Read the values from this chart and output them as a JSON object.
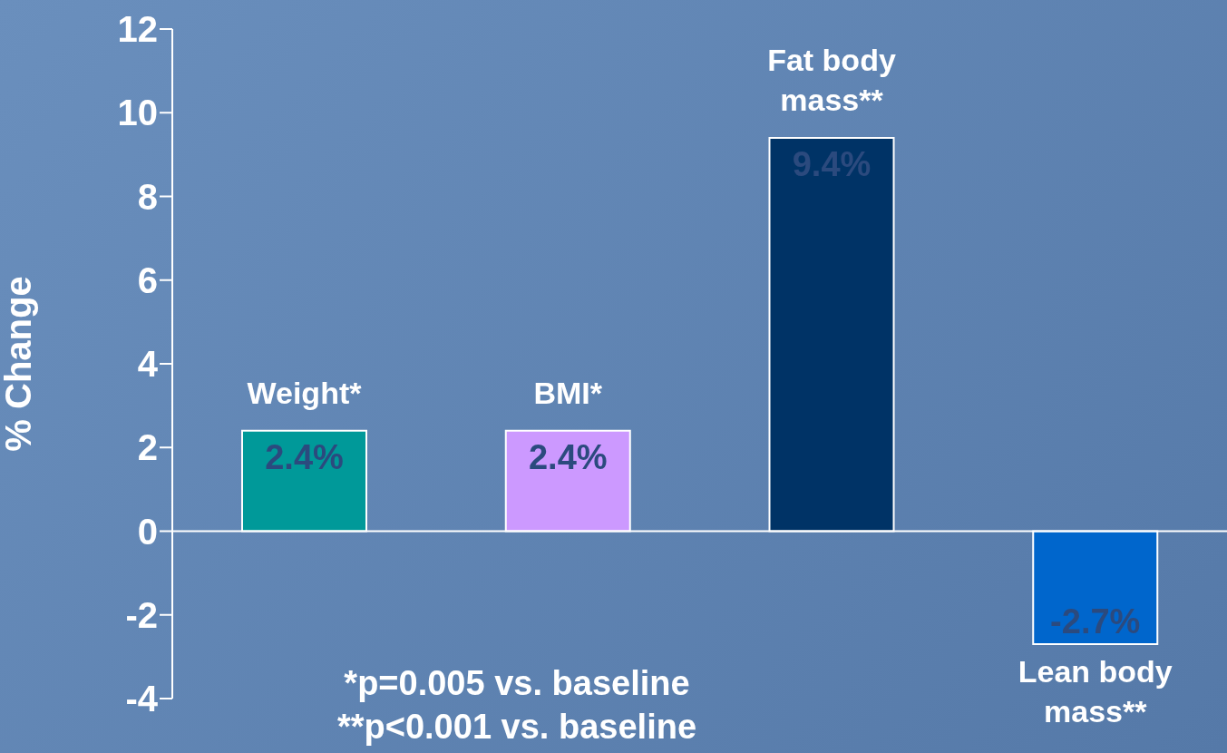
{
  "chart_data": {
    "type": "bar",
    "ylabel": "% Change",
    "categories": [
      "Weight*",
      "BMI*",
      "Fat body mass**",
      "Lean body mass**"
    ],
    "values": [
      2.4,
      2.4,
      9.4,
      -2.7
    ],
    "colors": [
      "#009999",
      "#cc99ff",
      "#003366",
      "#0066cc"
    ],
    "value_labels": [
      "2.4%",
      "2.4%",
      "9.4%",
      "-2.7%"
    ],
    "ylim": [
      -4,
      12
    ],
    "yticks": [
      -4,
      -2,
      0,
      2,
      4,
      6,
      8,
      10,
      12
    ],
    "annotations": [
      "*p=0.005 vs. baseline",
      "**p<0.001 vs. baseline"
    ]
  }
}
